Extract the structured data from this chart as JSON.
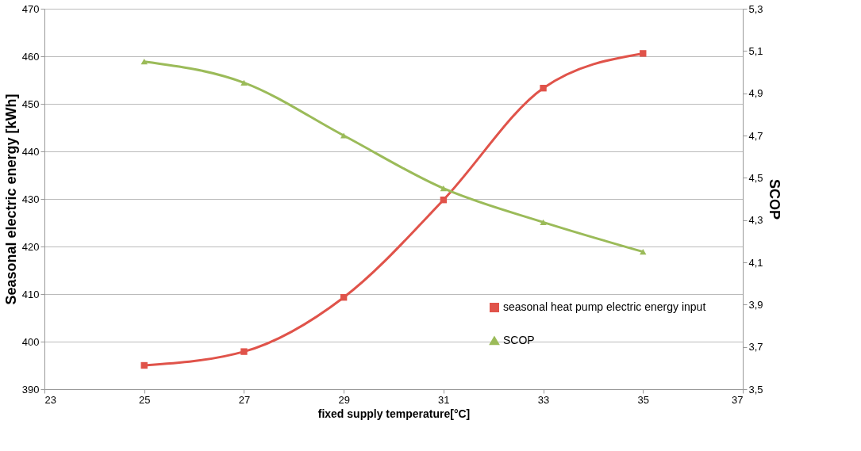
{
  "chart_data": {
    "type": "line",
    "xlabel": "fixed supply temperature[°C]",
    "ylabel": "Seasonal electric energy [kWh]",
    "y2label": "SCOP",
    "x": [
      25,
      27,
      29,
      31,
      33,
      35
    ],
    "xlim": [
      23,
      37
    ],
    "xticks": [
      23,
      25,
      27,
      29,
      31,
      33,
      35,
      37
    ],
    "ylim": [
      390,
      470
    ],
    "yticks": [
      390,
      400,
      410,
      420,
      430,
      440,
      450,
      460,
      470
    ],
    "y2lim": [
      3.5,
      5.3
    ],
    "y2ticks": [
      {
        "value": 3.5,
        "label": "3,5"
      },
      {
        "value": 3.7,
        "label": "3,7"
      },
      {
        "value": 3.9,
        "label": "3,9"
      },
      {
        "value": 4.1,
        "label": "4,1"
      },
      {
        "value": 4.3,
        "label": "4,3"
      },
      {
        "value": 4.5,
        "label": "4,5"
      },
      {
        "value": 4.7,
        "label": "4,7"
      },
      {
        "value": 4.9,
        "label": "4,9"
      },
      {
        "value": 5.1,
        "label": "5,1"
      },
      {
        "value": 5.3,
        "label": "5,3"
      }
    ],
    "grid": "y",
    "legend": "bottom right",
    "series": [
      {
        "name": "seasonal heat pump electric energy input",
        "color": "#e0534a",
        "marker": "square",
        "values": [
          395,
          397.9,
          409.3,
          429.8,
          453.3,
          460.6
        ]
      },
      {
        "name": "SCOP",
        "color": "#9bbb59",
        "marker": "triangle",
        "axis": "y2",
        "values": [
          5.05,
          4.95,
          4.7,
          4.45,
          4.29,
          4.15
        ]
      }
    ]
  }
}
